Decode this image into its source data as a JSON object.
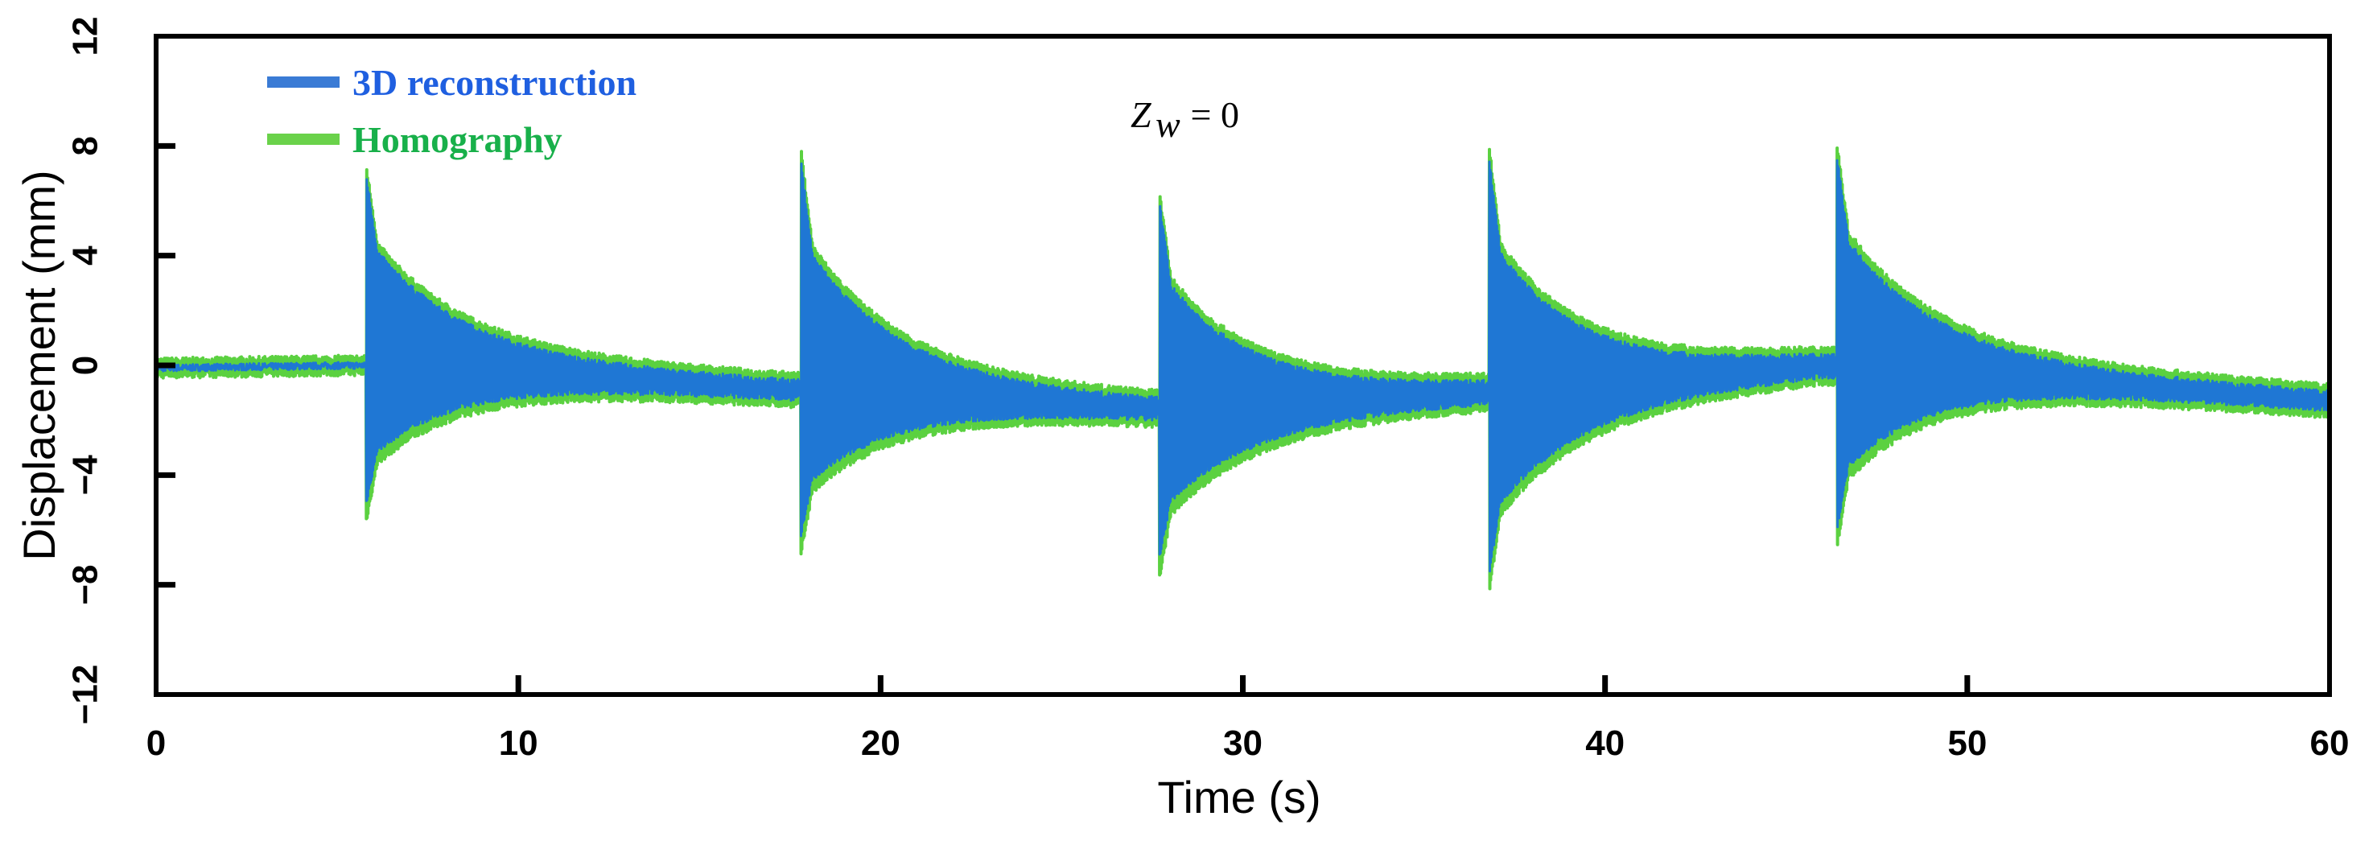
{
  "chart_data": {
    "type": "line",
    "xlabel": "Time (s)",
    "ylabel": "Displacement (mm)",
    "xlim": [
      0,
      60
    ],
    "ylim": [
      -12,
      12
    ],
    "x_ticks": [
      "0",
      "10",
      "20",
      "30",
      "40",
      "50",
      "60"
    ],
    "y_ticks": [
      "12",
      "8",
      "4",
      "0",
      "−4",
      "−8",
      "−12"
    ],
    "x_tick_values": [
      0,
      10,
      20,
      30,
      40,
      50,
      60
    ],
    "y_tick_values": [
      12,
      8,
      4,
      0,
      -4,
      -8,
      -12
    ],
    "grid": false,
    "legend_position": "top-left",
    "annotation": {
      "var": "Z",
      "sub": "w",
      "rest": " = 0"
    },
    "series": [
      {
        "name": "3D reconstruction",
        "color": "#1f77d4",
        "impacts": [
          {
            "t": 5.8,
            "peak": 6.9,
            "trough": -5.0
          },
          {
            "t": 17.8,
            "peak": 7.4,
            "trough": -6.2
          },
          {
            "t": 27.7,
            "peak": 5.9,
            "trough": -7.0
          },
          {
            "t": 36.8,
            "peak": 7.5,
            "trough": -7.6
          },
          {
            "t": 46.4,
            "peak": 7.6,
            "trough": -6.0
          }
        ]
      },
      {
        "name": "Homography",
        "color": "#5bd140",
        "impacts": [
          {
            "t": 5.8,
            "peak": 7.0,
            "trough": -5.4
          },
          {
            "t": 17.8,
            "peak": 7.6,
            "trough": -6.6
          },
          {
            "t": 27.7,
            "peak": 6.0,
            "trough": -7.5
          },
          {
            "t": 36.8,
            "peak": 7.7,
            "trough": -8.0
          },
          {
            "t": 46.4,
            "peak": 7.8,
            "trough": -6.4
          }
        ]
      }
    ],
    "baseline_points": [
      {
        "t": 0,
        "y": -0.1
      },
      {
        "t": 5.6,
        "y": 0.0
      },
      {
        "t": 17.6,
        "y": -0.9
      },
      {
        "t": 27.5,
        "y": -1.6
      },
      {
        "t": 36.6,
        "y": -1.0
      },
      {
        "t": 46.2,
        "y": 0.0
      },
      {
        "t": 60,
        "y": -1.3
      }
    ]
  }
}
